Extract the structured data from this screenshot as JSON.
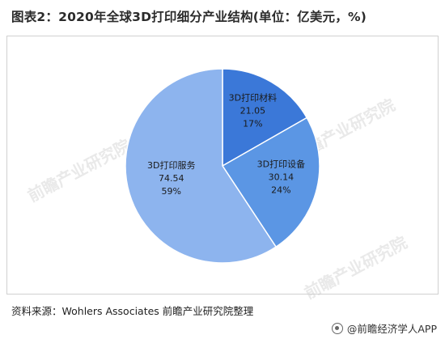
{
  "title": "图表2：2020年全球3D打印细分产业结构(单位：亿美元，%)",
  "source": "资料来源：Wohlers Associates 前瞻产业研究院整理",
  "brand": "@前瞻经济学人APP",
  "watermark": "前瞻产业研究院",
  "colors": {
    "slice_materials": "#3b78d8",
    "slice_equipment": "#5b96e4",
    "slice_services": "#8db4ee",
    "slice_border": "#ffffff"
  },
  "chart_data": {
    "type": "pie",
    "title": "图表2：2020年全球3D打印细分产业结构(单位：亿美元，%)",
    "start_angle_deg": 0,
    "direction": "clockwise",
    "slices": [
      {
        "label": "3D打印材料",
        "value": 21.05,
        "percent": "17%",
        "value_text": "21.05"
      },
      {
        "label": "3D打印设备",
        "value": 30.14,
        "percent": "24%",
        "value_text": "30.14"
      },
      {
        "label": "3D打印服务",
        "value": 74.54,
        "percent": "59%",
        "value_text": "74.54"
      }
    ]
  }
}
